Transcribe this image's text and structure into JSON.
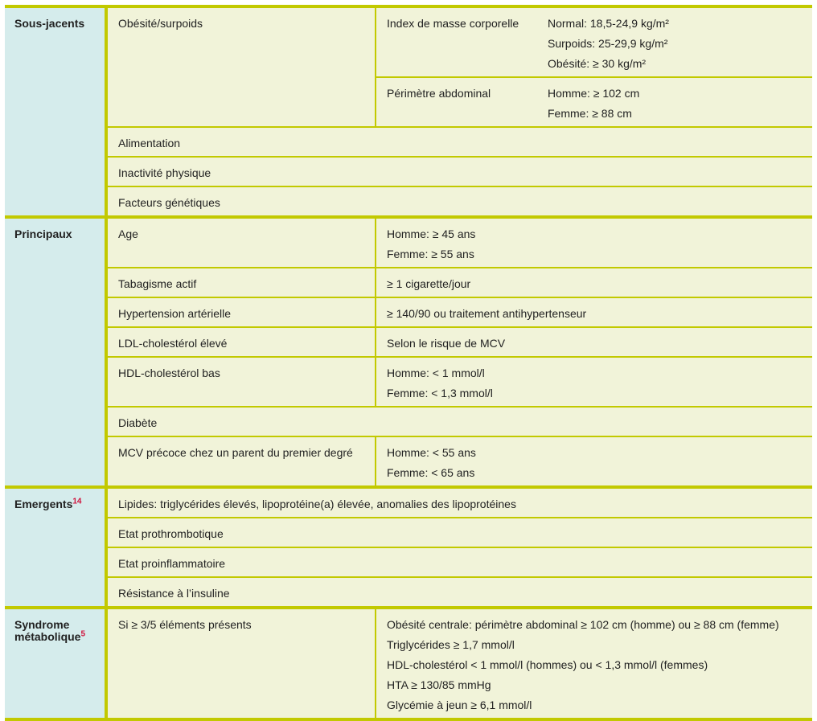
{
  "colors": {
    "rule": "#c2c900",
    "group_bg": "#d5ecec",
    "cell_bg": "#f1f3d9",
    "superscript": "#d0103a"
  },
  "groups": {
    "sous_jacents": {
      "label": "Sous-jacents",
      "obesite": {
        "label": "Obésité/surpoids",
        "imc": {
          "label": "Index de masse corporelle",
          "lines": [
            "Normal: 18,5-24,9 kg/m²",
            "Surpoids: 25-29,9 kg/m²",
            "Obésité: ≥ 30 kg/m²"
          ]
        },
        "perimetre": {
          "label": "Périmètre abdominal",
          "lines": [
            "Homme: ≥ 102 cm",
            "Femme: ≥ 88 cm"
          ]
        }
      },
      "rows": [
        "Alimentation",
        "Inactivité physique",
        "Facteurs génétiques"
      ]
    },
    "principaux": {
      "label": "Principaux",
      "rows": [
        {
          "label": "Age",
          "lines": [
            "Homme: ≥ 45 ans",
            "Femme: ≥ 55 ans"
          ]
        },
        {
          "label": "Tabagisme actif",
          "lines": [
            "≥ 1 cigarette/jour"
          ]
        },
        {
          "label": "Hypertension artérielle",
          "lines": [
            "≥ 140/90 ou traitement antihypertenseur"
          ]
        },
        {
          "label": "LDL-cholestérol élevé",
          "lines": [
            "Selon le risque de MCV"
          ]
        },
        {
          "label": "HDL-cholestérol bas",
          "lines": [
            "Homme: < 1 mmol/l",
            "Femme: < 1,3 mmol/l"
          ]
        },
        {
          "label": "Diabète",
          "lines": []
        },
        {
          "label": "MCV précoce chez un parent du premier degré",
          "lines": [
            "Homme: < 55 ans",
            "Femme: < 65 ans"
          ]
        }
      ]
    },
    "emergents": {
      "label": "Emergents",
      "ref": "14",
      "rows": [
        "Lipides: triglycérides élevés, lipoprotéine(a) élevée, anomalies des lipoprotéines",
        "Etat prothrombotique",
        "Etat proinflammatoire",
        "Résistance à l’insuline"
      ]
    },
    "syndrome": {
      "label_1": "Syndrome",
      "label_2": "métabolique",
      "ref": "5",
      "criterion": "Si ≥ 3/5 éléments présents",
      "lines": [
        "Obésité centrale: périmètre abdominal ≥ 102 cm (homme) ou ≥ 88 cm (femme)",
        "Triglycérides ≥ 1,7 mmol/l",
        "HDL-cholestérol < 1 mmol/l (hommes) ou < 1,3 mmol/l (femmes)",
        "HTA ≥ 130/85 mmHg",
        "Glycémie à jeun ≥ 6,1 mmol/l"
      ]
    }
  }
}
